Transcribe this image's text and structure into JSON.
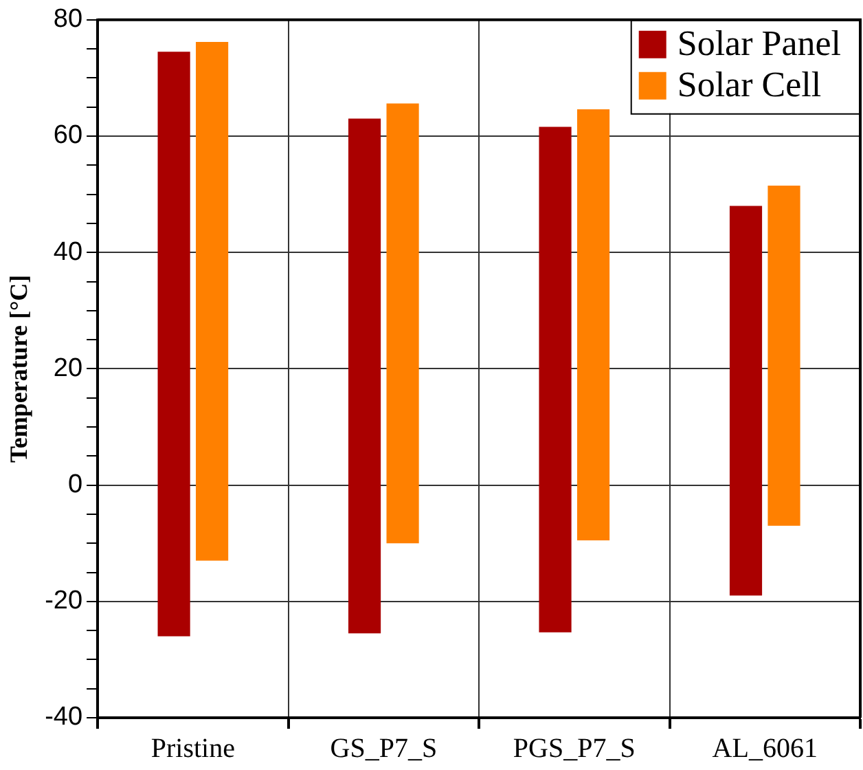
{
  "chart_data": {
    "type": "bar",
    "ylabel": "Temperature [°C]",
    "categories": [
      "Pristine",
      "GS_P7_S",
      "PGS_P7_S",
      "AL_6061"
    ],
    "series": [
      {
        "name": "Solar Panel",
        "color": "#aa0000",
        "base": [
          -26,
          -25.5,
          -25.3,
          -19
        ],
        "values": [
          100.5,
          88.5,
          86.9,
          67
        ]
      },
      {
        "name": "Solar Cell",
        "color": "#ff8000",
        "base": [
          -13,
          -10,
          -9.5,
          -7
        ],
        "values": [
          89.2,
          75.6,
          74.1,
          58.5
        ]
      }
    ],
    "ylim": [
      -40,
      80
    ],
    "yticks": [
      -40,
      {
        "value": -35,
        "label": null
      },
      {
        "value": -30,
        "label": null
      },
      {
        "value": -25,
        "label": null
      },
      -20,
      {
        "value": -15,
        "label": null
      },
      {
        "value": -10,
        "label": null
      },
      {
        "value": -5,
        "label": null
      },
      0,
      {
        "value": 5,
        "label": null
      },
      {
        "value": 10,
        "label": null
      },
      {
        "value": 15,
        "label": null
      },
      20,
      {
        "value": 25,
        "label": null
      },
      {
        "value": 30,
        "label": null
      },
      {
        "value": 35,
        "label": null
      },
      40,
      {
        "value": 45,
        "label": null
      },
      {
        "value": 50,
        "label": null
      },
      {
        "value": 55,
        "label": null
      },
      60,
      {
        "value": 65,
        "label": null
      },
      {
        "value": 70,
        "label": null
      },
      {
        "value": 75,
        "label": null
      },
      80
    ],
    "grid": true,
    "legend": "top right"
  }
}
